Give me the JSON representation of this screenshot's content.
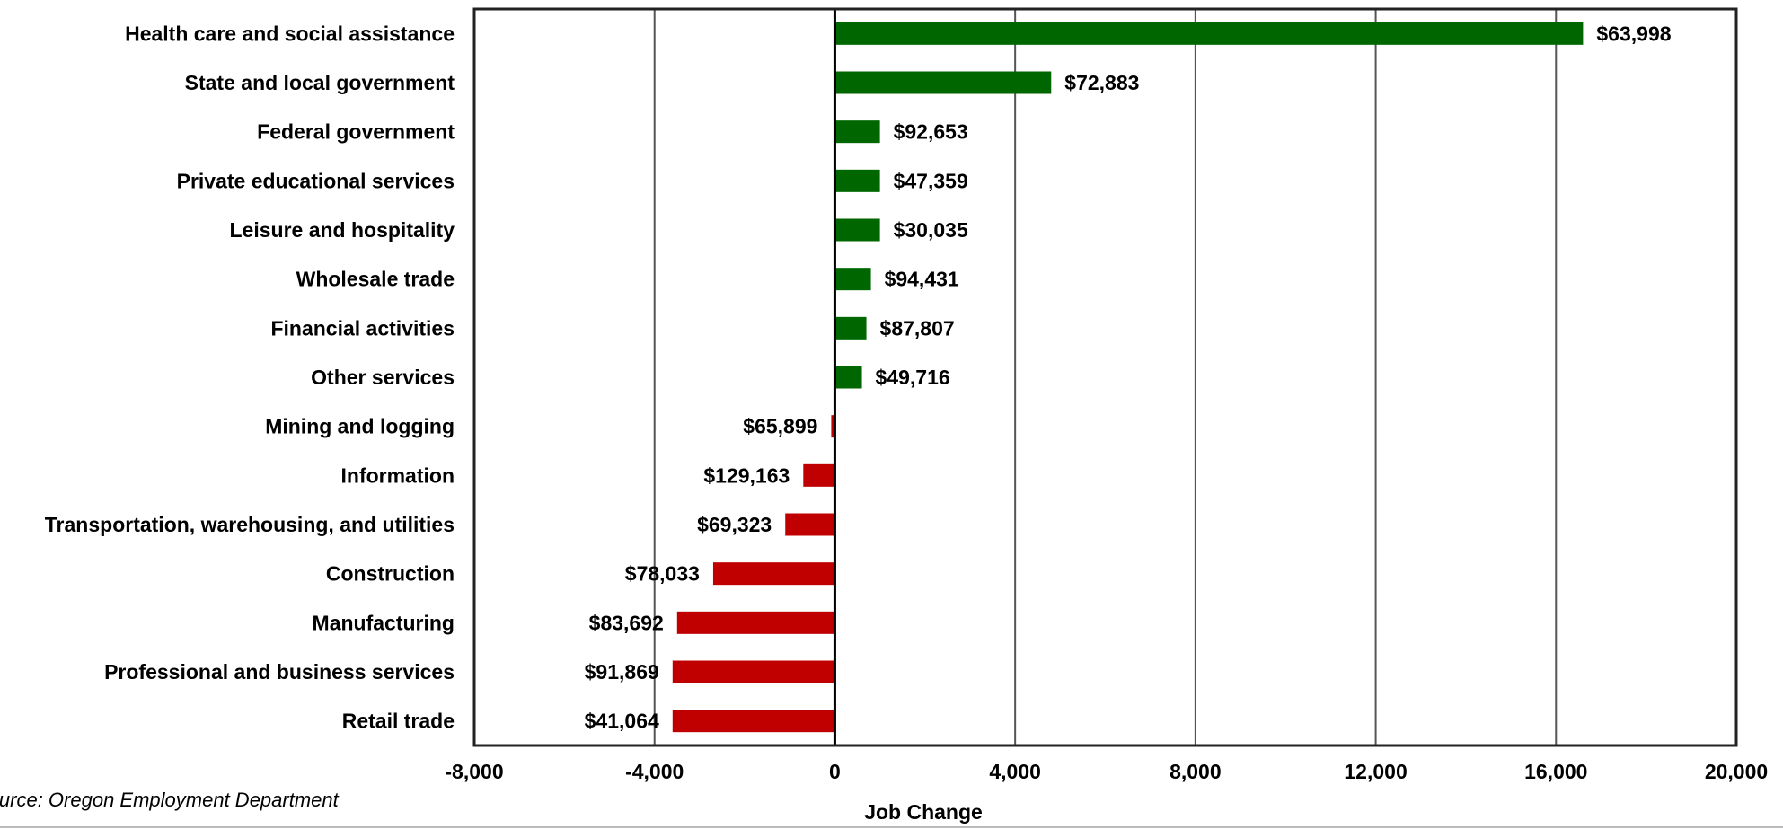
{
  "chart_data": {
    "type": "bar",
    "orientation": "horizontal",
    "categories": [
      "Health care and social assistance",
      "State and local government",
      "Federal government",
      "Private educational services",
      "Leisure and hospitality",
      "Wholesale trade",
      "Financial activities",
      "Other services",
      "Mining and logging",
      "Information",
      "Transportation, warehousing, and utilities",
      "Construction",
      "Manufacturing",
      "Professional and business services",
      "Retail trade"
    ],
    "values": [
      16600,
      4800,
      1000,
      1000,
      1000,
      800,
      700,
      600,
      -80,
      -700,
      -1100,
      -2700,
      -3500,
      -3600,
      -3600
    ],
    "data_labels": [
      "$63,998",
      "$72,883",
      "$92,653",
      "$47,359",
      "$30,035",
      "$94,431",
      "$87,807",
      "$49,716",
      "$65,899",
      "$129,163",
      "$69,323",
      "$78,033",
      "$83,692",
      "$91,869",
      "$41,064"
    ],
    "x_ticks": [
      "-8,000",
      "-4,000",
      "0",
      "4,000",
      "8,000",
      "12,000",
      "16,000",
      "20,000"
    ],
    "xlim": [
      -8000,
      20000
    ],
    "xlabel": "Job Change",
    "source": "Source: Oregon Employment Department",
    "grid": "vertical",
    "colors": {
      "positive": "#006600",
      "negative": "#c00000"
    }
  }
}
